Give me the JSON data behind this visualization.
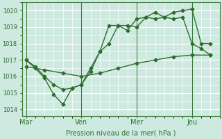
{
  "bg_color": "#ceeae0",
  "grid_color": "#ffffff",
  "line_color": "#2d6e2d",
  "xlabel": "Pression niveau de la mer( hPa )",
  "ylim": [
    1013.6,
    1020.5
  ],
  "yticks": [
    1014,
    1015,
    1016,
    1017,
    1018,
    1019,
    1020
  ],
  "xtick_labels": [
    "Mar",
    "Ven",
    "Mer",
    "Jeu"
  ],
  "xtick_positions": [
    0,
    3,
    6,
    9
  ],
  "vline_positions": [
    0,
    3,
    6,
    9
  ],
  "xlim": [
    -0.2,
    10.5
  ],
  "series": [
    {
      "x": [
        0,
        0.5,
        1,
        1.5,
        2,
        2.5,
        3,
        3.5,
        4,
        4.5,
        5,
        5.5,
        6,
        6.5,
        7,
        7.5,
        8,
        8.5,
        9,
        9.5,
        10
      ],
      "y": [
        1017.0,
        1016.5,
        1015.9,
        1014.9,
        1014.3,
        1015.3,
        1015.5,
        1016.3,
        1017.5,
        1018.0,
        1019.1,
        1019.1,
        1019.0,
        1019.6,
        1019.9,
        1019.6,
        1019.9,
        1020.0,
        1020.1,
        1018.0,
        1018.0
      ]
    },
    {
      "x": [
        0,
        0.5,
        1,
        1.5,
        2,
        2.5,
        3,
        3.5,
        4,
        4.5,
        5,
        5.5,
        6,
        6.5,
        7,
        7.5,
        8,
        8.5,
        9,
        9.5,
        10
      ],
      "y": [
        1017.0,
        1016.6,
        1016.0,
        1015.5,
        1015.2,
        1015.3,
        1015.5,
        1016.5,
        1017.5,
        1019.1,
        1019.1,
        1018.8,
        1019.5,
        1019.6,
        1019.5,
        1019.6,
        1019.5,
        1019.6,
        1018.0,
        1017.7,
        1017.3
      ]
    },
    {
      "x": [
        0,
        1,
        2,
        3,
        4,
        5,
        6,
        7,
        8,
        9,
        10
      ],
      "y": [
        1016.6,
        1016.4,
        1016.2,
        1016.0,
        1016.2,
        1016.5,
        1016.8,
        1017.0,
        1017.2,
        1017.3,
        1017.3
      ]
    }
  ],
  "marker": "D",
  "markersize": 2.5,
  "linewidth": 1.0
}
